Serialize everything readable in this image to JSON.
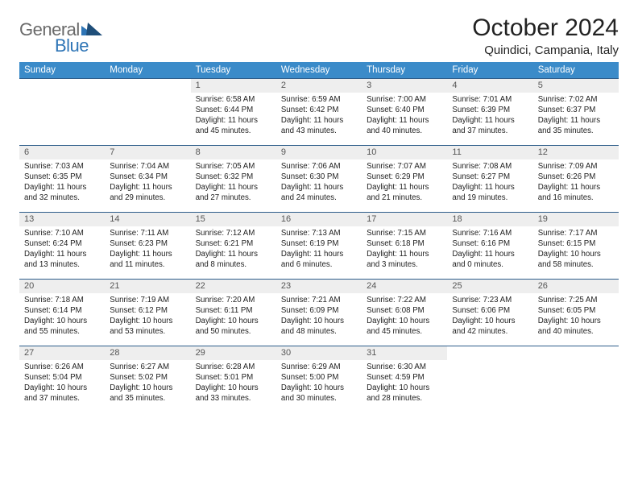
{
  "logo": {
    "general": "General",
    "blue": "Blue"
  },
  "title": "October 2024",
  "location": "Quindici, Campania, Italy",
  "colors": {
    "header_bg": "#3b8bc9",
    "header_text": "#ffffff",
    "daynum_bg": "#eeeeee",
    "border": "#2e5d8a",
    "logo_gray": "#6a6a6a",
    "logo_blue": "#2e75b6"
  },
  "day_headers": [
    "Sunday",
    "Monday",
    "Tuesday",
    "Wednesday",
    "Thursday",
    "Friday",
    "Saturday"
  ],
  "weeks": [
    {
      "nums": [
        "",
        "",
        "1",
        "2",
        "3",
        "4",
        "5"
      ],
      "cells": [
        [],
        [],
        [
          "Sunrise: 6:58 AM",
          "Sunset: 6:44 PM",
          "Daylight: 11 hours",
          "and 45 minutes."
        ],
        [
          "Sunrise: 6:59 AM",
          "Sunset: 6:42 PM",
          "Daylight: 11 hours",
          "and 43 minutes."
        ],
        [
          "Sunrise: 7:00 AM",
          "Sunset: 6:40 PM",
          "Daylight: 11 hours",
          "and 40 minutes."
        ],
        [
          "Sunrise: 7:01 AM",
          "Sunset: 6:39 PM",
          "Daylight: 11 hours",
          "and 37 minutes."
        ],
        [
          "Sunrise: 7:02 AM",
          "Sunset: 6:37 PM",
          "Daylight: 11 hours",
          "and 35 minutes."
        ]
      ]
    },
    {
      "nums": [
        "6",
        "7",
        "8",
        "9",
        "10",
        "11",
        "12"
      ],
      "cells": [
        [
          "Sunrise: 7:03 AM",
          "Sunset: 6:35 PM",
          "Daylight: 11 hours",
          "and 32 minutes."
        ],
        [
          "Sunrise: 7:04 AM",
          "Sunset: 6:34 PM",
          "Daylight: 11 hours",
          "and 29 minutes."
        ],
        [
          "Sunrise: 7:05 AM",
          "Sunset: 6:32 PM",
          "Daylight: 11 hours",
          "and 27 minutes."
        ],
        [
          "Sunrise: 7:06 AM",
          "Sunset: 6:30 PM",
          "Daylight: 11 hours",
          "and 24 minutes."
        ],
        [
          "Sunrise: 7:07 AM",
          "Sunset: 6:29 PM",
          "Daylight: 11 hours",
          "and 21 minutes."
        ],
        [
          "Sunrise: 7:08 AM",
          "Sunset: 6:27 PM",
          "Daylight: 11 hours",
          "and 19 minutes."
        ],
        [
          "Sunrise: 7:09 AM",
          "Sunset: 6:26 PM",
          "Daylight: 11 hours",
          "and 16 minutes."
        ]
      ]
    },
    {
      "nums": [
        "13",
        "14",
        "15",
        "16",
        "17",
        "18",
        "19"
      ],
      "cells": [
        [
          "Sunrise: 7:10 AM",
          "Sunset: 6:24 PM",
          "Daylight: 11 hours",
          "and 13 minutes."
        ],
        [
          "Sunrise: 7:11 AM",
          "Sunset: 6:23 PM",
          "Daylight: 11 hours",
          "and 11 minutes."
        ],
        [
          "Sunrise: 7:12 AM",
          "Sunset: 6:21 PM",
          "Daylight: 11 hours",
          "and 8 minutes."
        ],
        [
          "Sunrise: 7:13 AM",
          "Sunset: 6:19 PM",
          "Daylight: 11 hours",
          "and 6 minutes."
        ],
        [
          "Sunrise: 7:15 AM",
          "Sunset: 6:18 PM",
          "Daylight: 11 hours",
          "and 3 minutes."
        ],
        [
          "Sunrise: 7:16 AM",
          "Sunset: 6:16 PM",
          "Daylight: 11 hours",
          "and 0 minutes."
        ],
        [
          "Sunrise: 7:17 AM",
          "Sunset: 6:15 PM",
          "Daylight: 10 hours",
          "and 58 minutes."
        ]
      ]
    },
    {
      "nums": [
        "20",
        "21",
        "22",
        "23",
        "24",
        "25",
        "26"
      ],
      "cells": [
        [
          "Sunrise: 7:18 AM",
          "Sunset: 6:14 PM",
          "Daylight: 10 hours",
          "and 55 minutes."
        ],
        [
          "Sunrise: 7:19 AM",
          "Sunset: 6:12 PM",
          "Daylight: 10 hours",
          "and 53 minutes."
        ],
        [
          "Sunrise: 7:20 AM",
          "Sunset: 6:11 PM",
          "Daylight: 10 hours",
          "and 50 minutes."
        ],
        [
          "Sunrise: 7:21 AM",
          "Sunset: 6:09 PM",
          "Daylight: 10 hours",
          "and 48 minutes."
        ],
        [
          "Sunrise: 7:22 AM",
          "Sunset: 6:08 PM",
          "Daylight: 10 hours",
          "and 45 minutes."
        ],
        [
          "Sunrise: 7:23 AM",
          "Sunset: 6:06 PM",
          "Daylight: 10 hours",
          "and 42 minutes."
        ],
        [
          "Sunrise: 7:25 AM",
          "Sunset: 6:05 PM",
          "Daylight: 10 hours",
          "and 40 minutes."
        ]
      ]
    },
    {
      "nums": [
        "27",
        "28",
        "29",
        "30",
        "31",
        "",
        ""
      ],
      "cells": [
        [
          "Sunrise: 6:26 AM",
          "Sunset: 5:04 PM",
          "Daylight: 10 hours",
          "and 37 minutes."
        ],
        [
          "Sunrise: 6:27 AM",
          "Sunset: 5:02 PM",
          "Daylight: 10 hours",
          "and 35 minutes."
        ],
        [
          "Sunrise: 6:28 AM",
          "Sunset: 5:01 PM",
          "Daylight: 10 hours",
          "and 33 minutes."
        ],
        [
          "Sunrise: 6:29 AM",
          "Sunset: 5:00 PM",
          "Daylight: 10 hours",
          "and 30 minutes."
        ],
        [
          "Sunrise: 6:30 AM",
          "Sunset: 4:59 PM",
          "Daylight: 10 hours",
          "and 28 minutes."
        ],
        [],
        []
      ]
    }
  ]
}
